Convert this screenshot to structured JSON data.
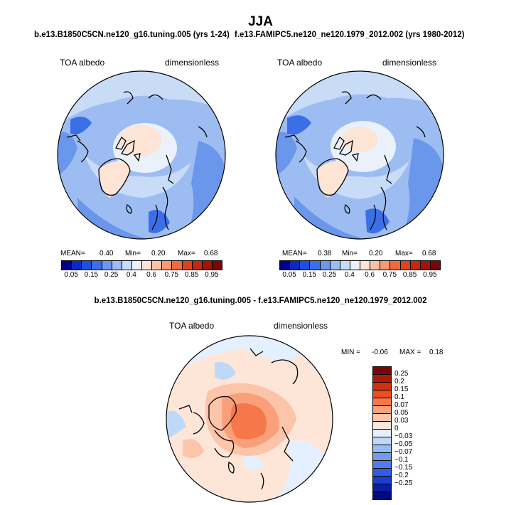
{
  "title": "JJA",
  "panels": {
    "left": {
      "title": "b.e13.B1850C5CN.ne120_g16.tuning.005 (yrs 1-24)",
      "variable": "TOA albedo",
      "units": "dimensionless",
      "mean_label": "MEAN=",
      "mean": "0.40",
      "min_label": "Min=",
      "min": "0.20",
      "max_label": "Max=",
      "max": "0.68"
    },
    "right": {
      "title": "f.e13.FAMIPC5.ne120_ne120.1979_2012.002 (yrs 1980-2012)",
      "variable": "TOA albedo",
      "units": "dimensionless",
      "mean_label": "MEAN=",
      "mean": "0.38",
      "min_label": "Min=",
      "min": "0.20",
      "max_label": "Max=",
      "max": "0.68"
    },
    "diff": {
      "title": "b.e13.B1850C5CN.ne120_g16.tuning.005 - f.e13.FAMIPC5.ne120_ne120.1979_2012.002",
      "variable": "TOA albedo",
      "units": "dimensionless",
      "min_label": "MIN =",
      "min": "-0.06",
      "max_label": "MAX =",
      "max": "0.18"
    }
  },
  "colorbar_top": {
    "colors": [
      "#00008a",
      "#0a2bc2",
      "#1f4fe0",
      "#3b6fe8",
      "#6a97ec",
      "#9dbdf2",
      "#c8dbf7",
      "#eaf1fb",
      "#fde4d5",
      "#fbc3a6",
      "#f89a73",
      "#f06a3e",
      "#de4418",
      "#c22a0a",
      "#a01506",
      "#7a0503"
    ],
    "labels": [
      "0.05",
      "0.15",
      "0.25",
      "0.4",
      "0.6",
      "0.75",
      "0.85",
      "0.95"
    ]
  },
  "colorbar_diff": {
    "colors": [
      "#7a0503",
      "#b01906",
      "#d2300c",
      "#ef4d1f",
      "#f6784a",
      "#f9a07a",
      "#fcc4a8",
      "#fde6d8",
      "#e4efff",
      "#c0d8f8",
      "#97bcf4",
      "#6e9cef",
      "#4a7eea",
      "#2d5ee0",
      "#1a3ec8",
      "#0a1ea4",
      "#020a80"
    ],
    "labels": [
      "0.25",
      "0.2",
      "0.15",
      "0.1",
      "0.07",
      "0.05",
      "0.03",
      "0",
      "−0.03",
      "−0.05",
      "−0.07",
      "−0.1",
      "−0.15",
      "−0.2",
      "−0.25"
    ]
  }
}
